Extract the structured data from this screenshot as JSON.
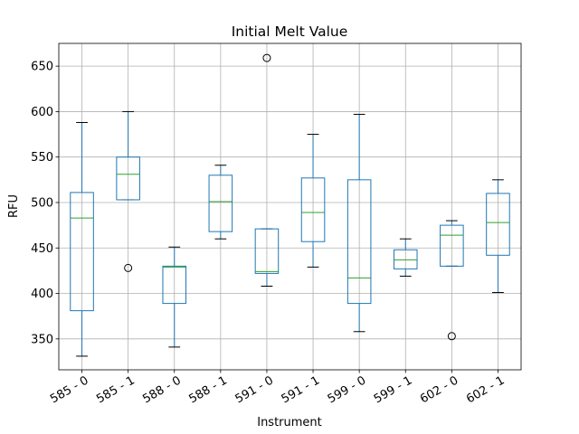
{
  "chart_data": {
    "type": "box",
    "title": "Initial Melt Value",
    "xlabel": "Instrument",
    "ylabel": "RFU",
    "ylim": [
      316,
      675
    ],
    "yticks": [
      350,
      400,
      450,
      500,
      550,
      600,
      650
    ],
    "grid": true,
    "colors": {
      "box": "#1f77b4",
      "median": "#2ca02c",
      "whisker_cap": "#000000",
      "grid": "#b0b0b0"
    },
    "categories": [
      "585 - 0",
      "585 - 1",
      "588 - 0",
      "588 - 1",
      "591 - 0",
      "591 - 1",
      "599 - 0",
      "599 - 1",
      "602 - 0",
      "602 - 1"
    ],
    "boxes": [
      {
        "label": "585 - 0",
        "whislo": 331,
        "q1": 381,
        "med": 483,
        "q3": 511,
        "whishi": 588,
        "fliers": []
      },
      {
        "label": "585 - 1",
        "whislo": 503,
        "q1": 503,
        "med": 531,
        "q3": 550,
        "whishi": 600,
        "fliers": [
          428
        ]
      },
      {
        "label": "588 - 0",
        "whislo": 341,
        "q1": 389,
        "med": 429,
        "q3": 430,
        "whishi": 451,
        "fliers": []
      },
      {
        "label": "588 - 1",
        "whislo": 460,
        "q1": 468,
        "med": 501,
        "q3": 530,
        "whishi": 541,
        "fliers": []
      },
      {
        "label": "591 - 0",
        "whislo": 408,
        "q1": 422,
        "med": 424,
        "q3": 471,
        "whishi": 471,
        "fliers": [
          659
        ]
      },
      {
        "label": "591 - 1",
        "whislo": 429,
        "q1": 457,
        "med": 489,
        "q3": 527,
        "whishi": 575,
        "fliers": []
      },
      {
        "label": "599 - 0",
        "whislo": 358,
        "q1": 389,
        "med": 417,
        "q3": 525,
        "whishi": 597,
        "fliers": []
      },
      {
        "label": "599 - 1",
        "whislo": 419,
        "q1": 427,
        "med": 437,
        "q3": 448,
        "whishi": 460,
        "fliers": []
      },
      {
        "label": "602 - 0",
        "whislo": 430,
        "q1": 430,
        "med": 464,
        "q3": 475,
        "whishi": 480,
        "fliers": [
          353
        ]
      },
      {
        "label": "602 - 1",
        "whislo": 401,
        "q1": 442,
        "med": 478,
        "q3": 510,
        "whishi": 525,
        "fliers": []
      }
    ]
  }
}
